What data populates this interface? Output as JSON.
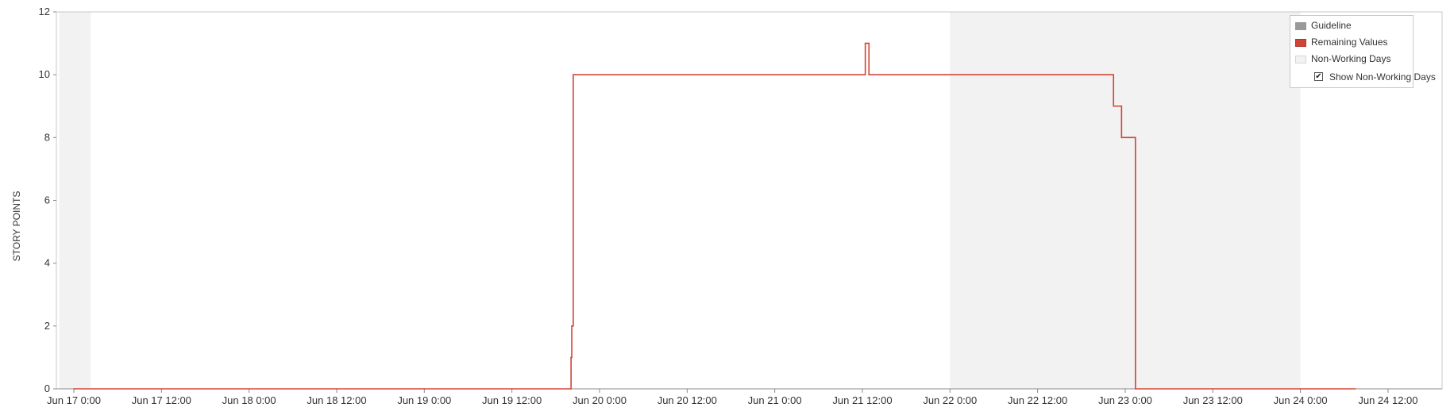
{
  "chart_data": {
    "type": "line",
    "title": "",
    "xlabel": "",
    "ylabel": "STORY POINTS",
    "ylim": [
      0,
      12
    ],
    "yticks": [
      0,
      2,
      4,
      6,
      8,
      10,
      12
    ],
    "xlim_hours": [
      0,
      175.5
    ],
    "xticks": [
      {
        "hour": 0,
        "label": "Jun 17 0:00"
      },
      {
        "hour": 12,
        "label": "Jun 17 12:00"
      },
      {
        "hour": 24,
        "label": "Jun 18 0:00"
      },
      {
        "hour": 36,
        "label": "Jun 18 12:00"
      },
      {
        "hour": 48,
        "label": "Jun 19 0:00"
      },
      {
        "hour": 60,
        "label": "Jun 19 12:00"
      },
      {
        "hour": 72,
        "label": "Jun 20 0:00"
      },
      {
        "hour": 84,
        "label": "Jun 20 12:00"
      },
      {
        "hour": 96,
        "label": "Jun 21 0:00"
      },
      {
        "hour": 108,
        "label": "Jun 21 12:00"
      },
      {
        "hour": 120,
        "label": "Jun 22 0:00"
      },
      {
        "hour": 132,
        "label": "Jun 22 12:00"
      },
      {
        "hour": 144,
        "label": "Jun 23 0:00"
      },
      {
        "hour": 156,
        "label": "Jun 23 12:00"
      },
      {
        "hour": 168,
        "label": "Jun 24 0:00"
      },
      {
        "hour": 180,
        "label": "Jun 24 12:00"
      }
    ],
    "non_working_periods": [
      {
        "start": -2,
        "end": 2.3
      },
      {
        "start": 120,
        "end": 168
      }
    ],
    "series": [
      {
        "name": "Remaining Values",
        "color": "#d04437",
        "step": true,
        "points": [
          [
            0,
            0
          ],
          [
            68.0,
            0
          ],
          [
            68.1,
            1
          ],
          [
            68.2,
            2
          ],
          [
            68.4,
            10
          ],
          [
            108.3,
            10
          ],
          [
            108.4,
            11
          ],
          [
            108.8,
            11
          ],
          [
            108.9,
            10
          ],
          [
            142.3,
            10
          ],
          [
            142.4,
            9
          ],
          [
            143.4,
            9
          ],
          [
            143.5,
            8
          ],
          [
            145.3,
            8
          ],
          [
            145.4,
            0
          ],
          [
            175.5,
            0
          ]
        ]
      }
    ],
    "legend": {
      "position": "top-right",
      "items": [
        {
          "label": "Guideline",
          "color": "#999999"
        },
        {
          "label": "Remaining Values",
          "color": "#d04437"
        },
        {
          "label": "Non-Working Days",
          "color": "#f2f2f2"
        }
      ],
      "checkbox_label": "Show Non-Working Days",
      "checkbox_checked": true
    }
  }
}
